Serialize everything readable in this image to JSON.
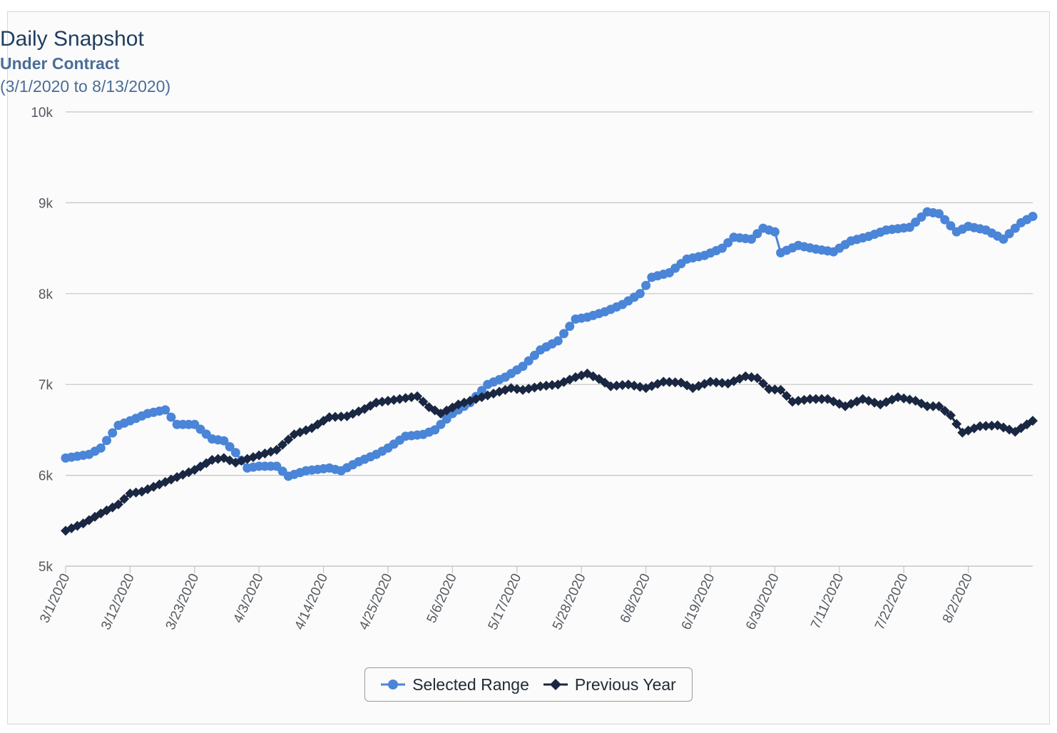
{
  "chart_data": {
    "type": "line",
    "title": "Daily Snapshot",
    "subtitle": "Under Contract",
    "date_range": "(3/1/2020 to 8/13/2020)",
    "ylim": [
      5000,
      10000
    ],
    "y_ticks": [
      5000,
      6000,
      7000,
      8000,
      9000,
      10000
    ],
    "y_tick_labels": [
      "5k",
      "6k",
      "7k",
      "8k",
      "9k",
      "10k"
    ],
    "x_ticks": [
      "3/1/2020",
      "3/12/2020",
      "3/23/2020",
      "4/3/2020",
      "4/14/2020",
      "4/25/2020",
      "5/6/2020",
      "5/17/2020",
      "5/28/2020",
      "6/8/2020",
      "6/19/2020",
      "6/30/2020",
      "7/11/2020",
      "7/22/2020",
      "8/2/2020"
    ],
    "x_start": "3/1/2020",
    "x_end": "8/13/2020",
    "grid": true,
    "legend_position": "bottom",
    "series": [
      {
        "name": "Selected Range",
        "color": "#4a85d8",
        "marker": "circle",
        "keypoints": [
          [
            "3/1/2020",
            6190
          ],
          [
            "3/5/2020",
            6230
          ],
          [
            "3/7/2020",
            6300
          ],
          [
            "3/10/2020",
            6550
          ],
          [
            "3/12/2020",
            6600
          ],
          [
            "3/15/2020",
            6680
          ],
          [
            "3/18/2020",
            6720
          ],
          [
            "3/20/2020",
            6560
          ],
          [
            "3/23/2020",
            6560
          ],
          [
            "3/26/2020",
            6400
          ],
          [
            "3/28/2020",
            6380
          ],
          [
            "3/30/2020",
            6250
          ],
          [
            "4/1/2020",
            6080
          ],
          [
            "4/3/2020",
            6100
          ],
          [
            "4/6/2020",
            6100
          ],
          [
            "4/8/2020",
            5990
          ],
          [
            "4/11/2020",
            6050
          ],
          [
            "4/15/2020",
            6080
          ],
          [
            "4/17/2020",
            6050
          ],
          [
            "4/20/2020",
            6150
          ],
          [
            "4/23/2020",
            6230
          ],
          [
            "4/25/2020",
            6300
          ],
          [
            "4/28/2020",
            6430
          ],
          [
            "5/1/2020",
            6450
          ],
          [
            "5/3/2020",
            6500
          ],
          [
            "5/6/2020",
            6680
          ],
          [
            "5/9/2020",
            6800
          ],
          [
            "5/12/2020",
            7000
          ],
          [
            "5/15/2020",
            7080
          ],
          [
            "5/18/2020",
            7200
          ],
          [
            "5/21/2020",
            7380
          ],
          [
            "5/24/2020",
            7480
          ],
          [
            "5/27/2020",
            7720
          ],
          [
            "5/29/2020",
            7740
          ],
          [
            "6/1/2020",
            7800
          ],
          [
            "6/4/2020",
            7880
          ],
          [
            "6/7/2020",
            8000
          ],
          [
            "6/9/2020",
            8180
          ],
          [
            "6/12/2020",
            8230
          ],
          [
            "6/15/2020",
            8380
          ],
          [
            "6/18/2020",
            8420
          ],
          [
            "6/21/2020",
            8500
          ],
          [
            "6/23/2020",
            8620
          ],
          [
            "6/26/2020",
            8600
          ],
          [
            "6/28/2020",
            8720
          ],
          [
            "6/30/2020",
            8680
          ],
          [
            "7/1/2020",
            8450
          ],
          [
            "7/4/2020",
            8530
          ],
          [
            "7/7/2020",
            8490
          ],
          [
            "7/10/2020",
            8460
          ],
          [
            "7/13/2020",
            8580
          ],
          [
            "7/16/2020",
            8630
          ],
          [
            "7/19/2020",
            8700
          ],
          [
            "7/23/2020",
            8730
          ],
          [
            "7/26/2020",
            8900
          ],
          [
            "7/28/2020",
            8880
          ],
          [
            "7/31/2020",
            8680
          ],
          [
            "8/2/2020",
            8740
          ],
          [
            "8/5/2020",
            8700
          ],
          [
            "8/8/2020",
            8600
          ],
          [
            "8/11/2020",
            8780
          ],
          [
            "8/13/2020",
            8850
          ]
        ]
      },
      {
        "name": "Previous Year",
        "color": "#1a2742",
        "marker": "diamond",
        "keypoints": [
          [
            "3/1/2020",
            5390
          ],
          [
            "3/4/2020",
            5470
          ],
          [
            "3/7/2020",
            5580
          ],
          [
            "3/10/2020",
            5680
          ],
          [
            "3/12/2020",
            5800
          ],
          [
            "3/14/2020",
            5820
          ],
          [
            "3/17/2020",
            5900
          ],
          [
            "3/20/2020",
            5980
          ],
          [
            "3/23/2020",
            6060
          ],
          [
            "3/26/2020",
            6170
          ],
          [
            "3/28/2020",
            6190
          ],
          [
            "3/30/2020",
            6140
          ],
          [
            "4/3/2020",
            6220
          ],
          [
            "4/6/2020",
            6280
          ],
          [
            "4/9/2020",
            6450
          ],
          [
            "4/12/2020",
            6520
          ],
          [
            "4/15/2020",
            6640
          ],
          [
            "4/18/2020",
            6650
          ],
          [
            "4/21/2020",
            6730
          ],
          [
            "4/23/2020",
            6800
          ],
          [
            "4/27/2020",
            6840
          ],
          [
            "4/30/2020",
            6870
          ],
          [
            "5/2/2020",
            6750
          ],
          [
            "5/4/2020",
            6680
          ],
          [
            "5/7/2020",
            6780
          ],
          [
            "5/10/2020",
            6840
          ],
          [
            "5/13/2020",
            6900
          ],
          [
            "5/16/2020",
            6960
          ],
          [
            "5/18/2020",
            6940
          ],
          [
            "5/21/2020",
            6980
          ],
          [
            "5/24/2020",
            7000
          ],
          [
            "5/27/2020",
            7080
          ],
          [
            "5/29/2020",
            7120
          ],
          [
            "5/31/2020",
            7060
          ],
          [
            "6/2/2020",
            6980
          ],
          [
            "6/5/2020",
            7000
          ],
          [
            "6/8/2020",
            6960
          ],
          [
            "6/11/2020",
            7030
          ],
          [
            "6/14/2020",
            7020
          ],
          [
            "6/16/2020",
            6960
          ],
          [
            "6/19/2020",
            7030
          ],
          [
            "6/22/2020",
            7010
          ],
          [
            "6/25/2020",
            7090
          ],
          [
            "6/27/2020",
            7070
          ],
          [
            "6/29/2020",
            6950
          ],
          [
            "7/1/2020",
            6940
          ],
          [
            "7/3/2020",
            6810
          ],
          [
            "7/6/2020",
            6840
          ],
          [
            "7/9/2020",
            6840
          ],
          [
            "7/12/2020",
            6760
          ],
          [
            "7/15/2020",
            6840
          ],
          [
            "7/18/2020",
            6780
          ],
          [
            "7/21/2020",
            6860
          ],
          [
            "7/24/2020",
            6820
          ],
          [
            "7/26/2020",
            6760
          ],
          [
            "7/28/2020",
            6760
          ],
          [
            "7/30/2020",
            6660
          ],
          [
            "8/1/2020",
            6470
          ],
          [
            "8/4/2020",
            6540
          ],
          [
            "8/7/2020",
            6550
          ],
          [
            "8/10/2020",
            6480
          ],
          [
            "8/13/2020",
            6600
          ]
        ]
      }
    ]
  }
}
